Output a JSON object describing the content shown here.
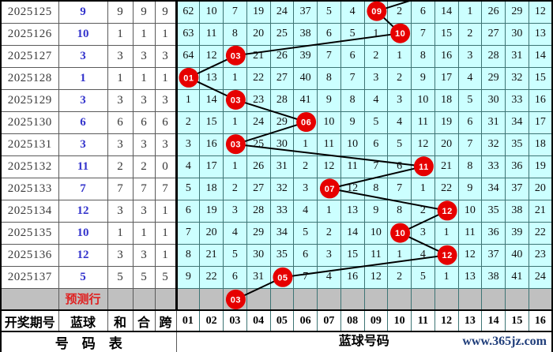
{
  "colors": {
    "grid_cell_bg": "#ccffff",
    "highlight_row_bg": "#c0c0c0",
    "marker_red": "#e60000",
    "marker_text": "#ffffff",
    "blue_ball_text": "#3333cc",
    "prediction_text_red": "#e02020",
    "site_text_blue": "#1f3d7a",
    "trend_line": "#000000"
  },
  "table": {
    "header": {
      "period": "开奖期号",
      "blue": "蓝球",
      "sum": "和",
      "combo": "合",
      "span": "跨"
    },
    "ball_columns": [
      "01",
      "02",
      "03",
      "04",
      "05",
      "06",
      "07",
      "08",
      "09",
      "10",
      "11",
      "12",
      "13",
      "14",
      "15",
      "16"
    ],
    "rows": [
      {
        "period": "2025125",
        "blue": 9,
        "sum": 9,
        "combo": 9,
        "span": 9,
        "hit_col": 9,
        "misses": [
          62,
          10,
          7,
          19,
          24,
          37,
          5,
          4,
          "",
          2,
          6,
          14,
          1,
          26,
          29,
          12
        ]
      },
      {
        "period": "2025126",
        "blue": 10,
        "sum": 1,
        "combo": 1,
        "span": 1,
        "hit_col": 10,
        "misses": [
          63,
          11,
          8,
          20,
          25,
          38,
          6,
          5,
          1,
          "",
          7,
          15,
          2,
          27,
          30,
          13
        ]
      },
      {
        "period": "2025127",
        "blue": 3,
        "sum": 3,
        "combo": 3,
        "span": 3,
        "hit_col": 3,
        "misses": [
          64,
          12,
          "",
          21,
          26,
          39,
          7,
          6,
          2,
          1,
          8,
          16,
          3,
          28,
          31,
          14
        ]
      },
      {
        "period": "2025128",
        "blue": 1,
        "sum": 1,
        "combo": 1,
        "span": 1,
        "hit_col": 1,
        "misses": [
          "",
          13,
          1,
          22,
          27,
          40,
          8,
          7,
          3,
          2,
          9,
          17,
          4,
          29,
          32,
          15
        ]
      },
      {
        "period": "2025129",
        "blue": 3,
        "sum": 3,
        "combo": 3,
        "span": 3,
        "hit_col": 3,
        "misses": [
          1,
          14,
          "",
          23,
          28,
          41,
          9,
          8,
          4,
          3,
          10,
          18,
          5,
          30,
          33,
          16
        ]
      },
      {
        "period": "2025130",
        "blue": 6,
        "sum": 6,
        "combo": 6,
        "span": 6,
        "hit_col": 6,
        "misses": [
          2,
          15,
          1,
          24,
          29,
          "",
          10,
          9,
          5,
          4,
          11,
          19,
          6,
          31,
          34,
          17
        ]
      },
      {
        "period": "2025131",
        "blue": 3,
        "sum": 3,
        "combo": 3,
        "span": 3,
        "hit_col": 3,
        "misses": [
          3,
          16,
          "",
          25,
          30,
          1,
          11,
          10,
          6,
          5,
          12,
          20,
          7,
          32,
          35,
          18
        ]
      },
      {
        "period": "2025132",
        "blue": 11,
        "sum": 2,
        "combo": 2,
        "span": 0,
        "hit_col": 11,
        "misses": [
          4,
          17,
          1,
          26,
          31,
          2,
          12,
          11,
          7,
          6,
          "",
          21,
          8,
          33,
          36,
          19
        ]
      },
      {
        "period": "2025133",
        "blue": 7,
        "sum": 7,
        "combo": 7,
        "span": 7,
        "hit_col": 7,
        "misses": [
          5,
          18,
          2,
          27,
          32,
          3,
          "",
          12,
          8,
          7,
          1,
          22,
          9,
          34,
          37,
          20
        ]
      },
      {
        "period": "2025134",
        "blue": 12,
        "sum": 3,
        "combo": 3,
        "span": 1,
        "hit_col": 12,
        "misses": [
          6,
          19,
          3,
          28,
          33,
          4,
          1,
          13,
          9,
          8,
          2,
          "",
          10,
          35,
          38,
          21
        ]
      },
      {
        "period": "2025135",
        "blue": 10,
        "sum": 1,
        "combo": 1,
        "span": 1,
        "hit_col": 10,
        "misses": [
          7,
          20,
          4,
          29,
          34,
          5,
          2,
          14,
          10,
          "",
          3,
          1,
          11,
          36,
          39,
          22
        ]
      },
      {
        "period": "2025136",
        "blue": 12,
        "sum": 3,
        "combo": 3,
        "span": 1,
        "hit_col": 12,
        "misses": [
          8,
          21,
          5,
          30,
          35,
          6,
          3,
          15,
          11,
          1,
          4,
          "",
          12,
          37,
          40,
          23
        ]
      },
      {
        "period": "2025137",
        "blue": 5,
        "sum": 5,
        "combo": 5,
        "span": 5,
        "hit_col": 5,
        "misses": [
          9,
          22,
          6,
          31,
          "",
          7,
          4,
          16,
          12,
          2,
          5,
          1,
          13,
          38,
          41,
          24
        ]
      }
    ],
    "prediction_row": {
      "label": "预测行"
    }
  },
  "footer": {
    "left": "号　码　表",
    "right": "蓝球号码",
    "site": "www.365jz.com"
  },
  "chart_data": {
    "type": "line",
    "x": [
      "2025125",
      "2025126",
      "2025127",
      "2025128",
      "2025129",
      "2025130",
      "2025131",
      "2025132",
      "2025133",
      "2025134",
      "2025135",
      "2025136",
      "2025137"
    ],
    "series": [
      {
        "name": "蓝球",
        "values": [
          9,
          10,
          3,
          1,
          3,
          6,
          3,
          11,
          7,
          12,
          10,
          12,
          5
        ]
      }
    ],
    "prediction_value": 3,
    "x_axis_cols_range": [
      "01",
      "16"
    ],
    "legend_position": "none",
    "grid": true,
    "enters_from_top_above_col": 12,
    "markers": [
      {
        "row": 1,
        "col": 9,
        "label": "09"
      },
      {
        "row": 2,
        "col": 10,
        "label": "10"
      },
      {
        "row": 3,
        "col": 3,
        "label": "03"
      },
      {
        "row": 4,
        "col": 1,
        "label": "01"
      },
      {
        "row": 5,
        "col": 3,
        "label": "03"
      },
      {
        "row": 6,
        "col": 6,
        "label": "06"
      },
      {
        "row": 7,
        "col": 3,
        "label": "03"
      },
      {
        "row": 8,
        "col": 11,
        "label": "11"
      },
      {
        "row": 9,
        "col": 7,
        "label": "07"
      },
      {
        "row": 10,
        "col": 12,
        "label": "12"
      },
      {
        "row": 11,
        "col": 10,
        "label": "10"
      },
      {
        "row": 12,
        "col": 12,
        "label": "12"
      },
      {
        "row": 13,
        "col": 5,
        "label": "05"
      },
      {
        "row": 14,
        "col": 3,
        "label": "03"
      }
    ]
  }
}
